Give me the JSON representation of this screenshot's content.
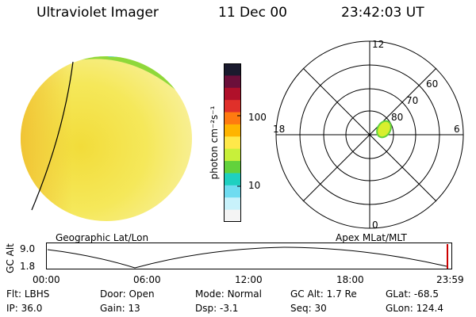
{
  "header": {
    "instrument": "Ultraviolet Imager",
    "date": "11 Dec 00",
    "time": "23:42:03 UT"
  },
  "colorbar": {
    "unit_label": "photon cm⁻²s⁻¹",
    "tick_100": "100",
    "tick_10": "10",
    "colors": [
      "#1a1a2e",
      "#6b0f3a",
      "#b0102a",
      "#e0302a",
      "#ff7a10",
      "#ffb400",
      "#ffe84a",
      "#c8f03a",
      "#62d23c",
      "#1fd0c0",
      "#6fdcf0",
      "#c8f2fb",
      "#f4f4f4"
    ]
  },
  "polar": {
    "labels_mlt": {
      "top": "12",
      "left": "18",
      "right": "6",
      "bottom": "0"
    },
    "labels_lat": [
      "60",
      "70",
      "80"
    ]
  },
  "timeline": {
    "left_label": "Geographic Lat/Lon",
    "right_label": "Apex MLat/MLT",
    "ylabel": "GC Alt",
    "y_ticks": [
      "9.0",
      "1.8"
    ],
    "x_ticks": [
      "00:00",
      "06:00",
      "12:00",
      "18:00",
      "23:59"
    ]
  },
  "info": {
    "row1": [
      {
        "label": "Flt:",
        "value": "LBHS"
      },
      {
        "label": "Door:",
        "value": "Open"
      },
      {
        "label": "Mode:",
        "value": "Normal"
      },
      {
        "label": "GC Alt:",
        "value": "1.7 Re"
      },
      {
        "label": "GLat:",
        "value": "-68.5"
      }
    ],
    "row2": [
      {
        "label": "IP:",
        "value": "36.0"
      },
      {
        "label": "Gain:",
        "value": "13"
      },
      {
        "label": "Dsp:",
        "value": "-3.1"
      },
      {
        "label": "Seq:",
        "value": "30"
      },
      {
        "label": "GLon:",
        "value": "124.4"
      }
    ]
  }
}
